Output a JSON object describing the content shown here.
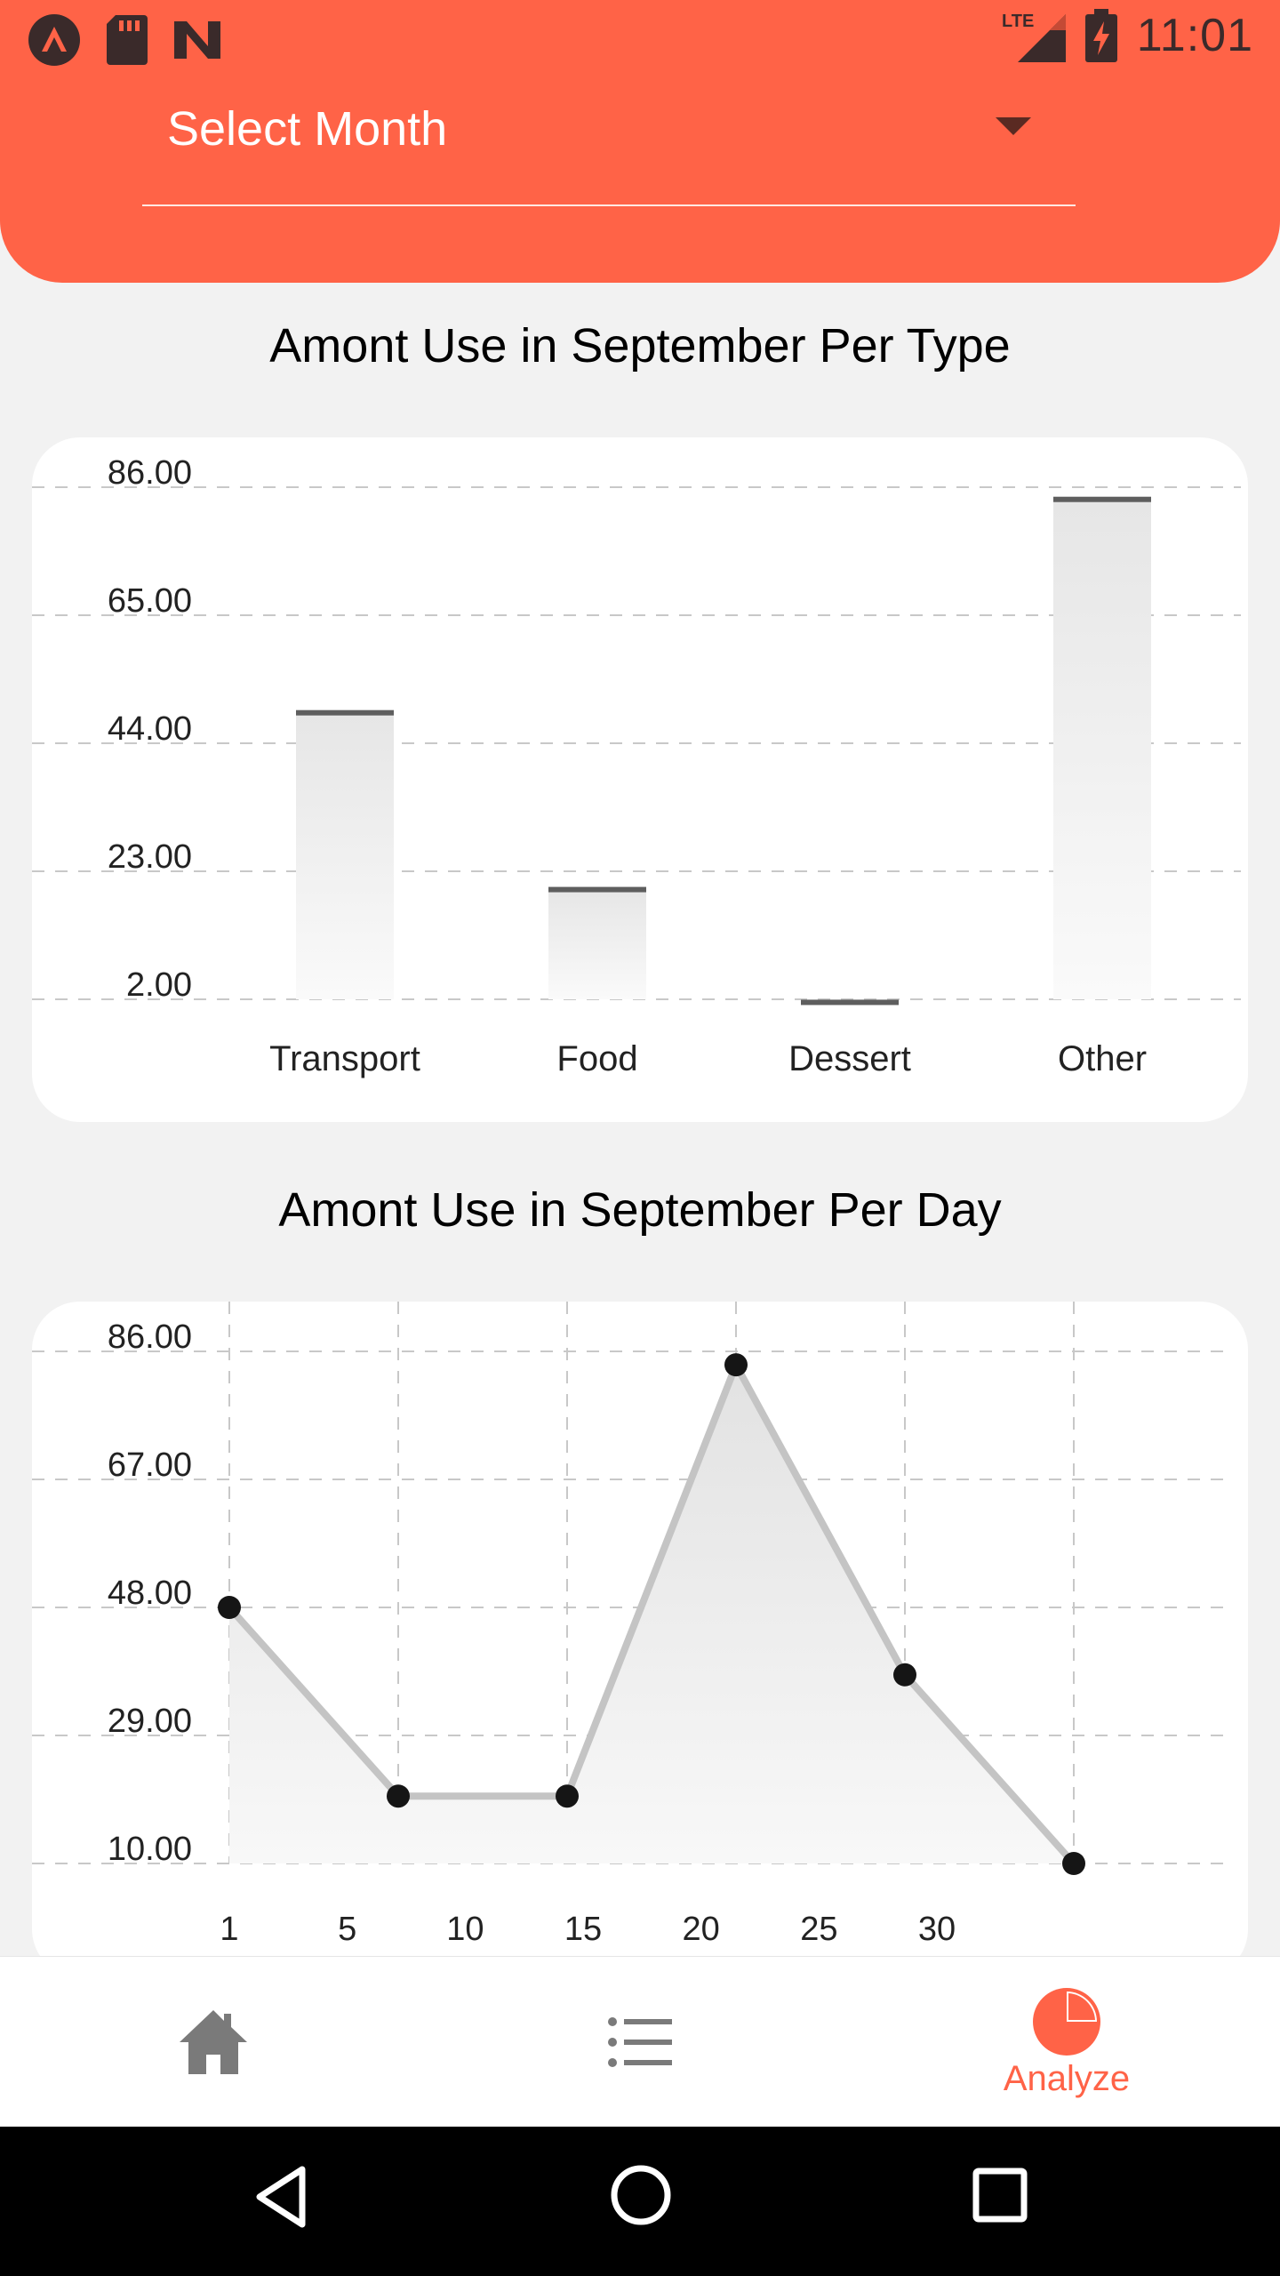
{
  "status_bar": {
    "time": "11:01",
    "network": "LTE",
    "icons_left": [
      "arch-app-icon",
      "sd-card-icon",
      "n-app-icon"
    ],
    "icons_right": [
      "lte-signal-icon",
      "battery-charging-icon"
    ]
  },
  "header": {
    "month_select_label": "Select Month",
    "accent_color": "#ff6347"
  },
  "charts": {
    "type_title": "Amont Use in September Per Type",
    "day_title": "Amont Use in September Per Day"
  },
  "chart_data": [
    {
      "type": "bar",
      "title": "Amont Use in September Per Type",
      "categories": [
        "Transport",
        "Food",
        "Dessert",
        "Other"
      ],
      "values": [
        49,
        20,
        1.5,
        84
      ],
      "y_ticks": [
        "86.00",
        "65.00",
        "44.00",
        "23.00",
        "2.00"
      ],
      "ylim": [
        2,
        86
      ],
      "grid": "horizontal dashed"
    },
    {
      "type": "line",
      "title": "Amont Use in September Per Day",
      "x": [
        1,
        6,
        11,
        16,
        21,
        26
      ],
      "values": [
        48,
        20,
        20,
        84,
        38,
        10
      ],
      "x_ticks": [
        "1",
        "5",
        "10",
        "15",
        "20",
        "25",
        "30"
      ],
      "y_ticks": [
        "86.00",
        "67.00",
        "48.00",
        "29.00",
        "10.00"
      ],
      "ylim": [
        10,
        86
      ],
      "grid": "both dashed"
    }
  ],
  "nav": {
    "items": [
      {
        "name": "home",
        "icon": "home-icon",
        "label": ""
      },
      {
        "name": "list",
        "icon": "list-icon",
        "label": ""
      },
      {
        "name": "analyze",
        "icon": "pie-chart-icon",
        "label": "Analyze"
      }
    ],
    "active": "analyze"
  },
  "system_nav": [
    "back-icon",
    "home-circle-icon",
    "recents-icon"
  ]
}
